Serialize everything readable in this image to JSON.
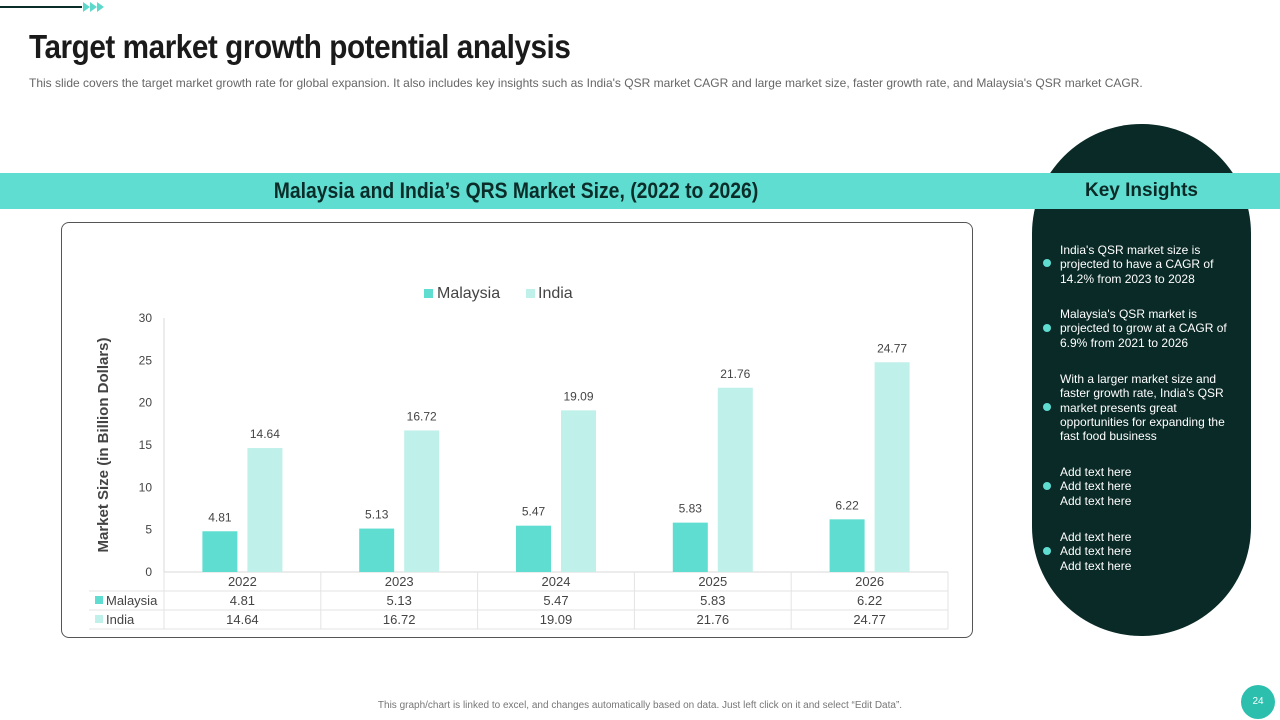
{
  "header": {
    "title": "Target market growth potential analysis",
    "subtitle": "This slide covers the target market growth rate for global expansion. It also includes key insights such as India's QSR market CAGR and large market size, faster growth rate,  and Malaysia's QSR market CAGR."
  },
  "band": {
    "chart_heading": "Malaysia and India’s QRS Market Size, (2022 to 2026)"
  },
  "insights": {
    "title": "Key Insights",
    "items": [
      "India's QSR market size is projected to have a CAGR of 14.2% from 2023 to 2028",
      "Malaysia's QSR market is projected to grow at a CAGR of 6.9% from 2021 to 2026",
      "With a larger market size and faster growth rate, India's QSR market presents great opportunities for expanding the fast food business",
      "Add text here\nAdd text here\nAdd text here",
      "Add text here\nAdd text here\nAdd text here"
    ]
  },
  "footer": {
    "note": "This graph/chart is linked to excel, and changes automatically based on data. Just left click on it and select “Edit Data”.",
    "page_number": "24"
  },
  "colors": {
    "malaysia": "#5fddd1",
    "india": "#bff0ea",
    "dark": "#0a2a27"
  },
  "chart_data": {
    "type": "bar",
    "title": "",
    "categories": [
      "2022",
      "2023",
      "2024",
      "2025",
      "2026"
    ],
    "series": [
      {
        "name": "Malaysia",
        "values": [
          4.81,
          5.13,
          5.47,
          5.83,
          6.22
        ],
        "labels": [
          "4.81",
          "5.13",
          "5.47",
          "5.83",
          "6.22"
        ]
      },
      {
        "name": "India",
        "values": [
          14.64,
          16.72,
          19.09,
          21.76,
          24.77
        ],
        "labels": [
          "14.64",
          "16.72",
          "19.09",
          "21.76",
          "24.77"
        ]
      }
    ],
    "xlabel": "",
    "ylabel": "Market Size (in Billion Dollars)",
    "ylim": [
      0,
      30
    ],
    "yticks": [
      "0",
      "5",
      "10",
      "15",
      "20",
      "25",
      "30"
    ],
    "legend": "top-center",
    "data_table": true
  }
}
